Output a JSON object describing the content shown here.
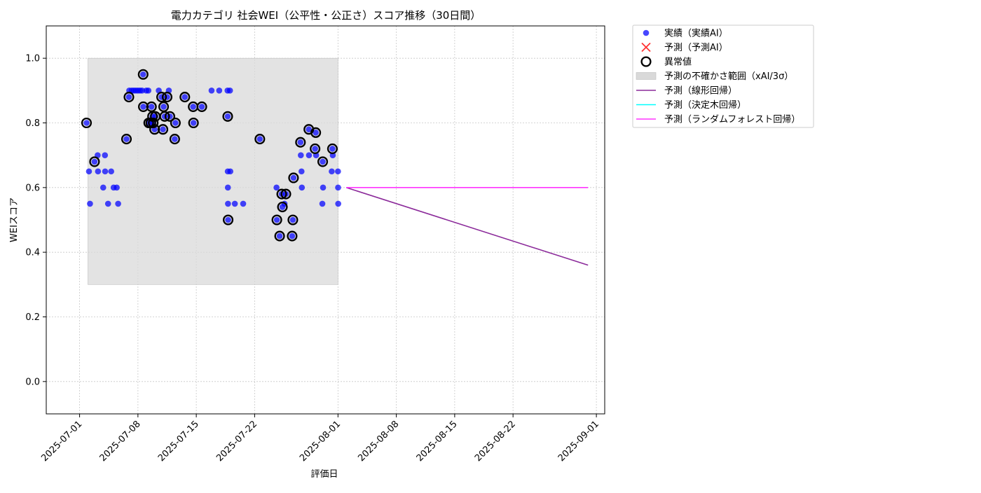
{
  "chart_data": {
    "type": "scatter",
    "title": "電力カテゴリ 社会WEI（公平性・公正さ）スコア推移（30日間）",
    "xlabel": "評価日",
    "ylabel": "WEIスコア",
    "xlim": [
      "2025-06-27",
      "2025-09-02"
    ],
    "ylim": [
      -0.1,
      1.1
    ],
    "x_ticks": [
      "2025-07-01",
      "2025-07-08",
      "2025-07-15",
      "2025-07-22",
      "2025-08-01",
      "2025-08-08",
      "2025-08-15",
      "2025-08-22",
      "2025-09-01"
    ],
    "y_ticks": [
      "0.0",
      "0.2",
      "0.4",
      "0.6",
      "0.8",
      "1.0"
    ],
    "grid": true,
    "legend_position": "outside top-right",
    "legend": [
      {
        "label": "実績（実績AI）",
        "kind": "dot",
        "color": "#0000ff"
      },
      {
        "label": "予測（予測AI）",
        "kind": "cross",
        "color": "#ff3333"
      },
      {
        "label": "異常値",
        "kind": "ring",
        "color": "#000000"
      },
      {
        "label": "予測の不確かさ範囲（xAI/3σ）",
        "kind": "band",
        "color": "#d9d9d9"
      },
      {
        "label": "予測（線形回帰）",
        "kind": "line",
        "color": "#8b2a9a"
      },
      {
        "label": "予測（決定木回帰）",
        "kind": "line",
        "color": "#00ffff"
      },
      {
        "label": "予測（ランダムフォレスト回帰）",
        "kind": "line",
        "color": "#ff33ff"
      }
    ],
    "band": {
      "x_start": "2025-07-02",
      "x_end": "2025-08-01",
      "y_low": 0.3,
      "y_high": 1.0
    },
    "actual": [
      [
        "2025-07-01 20:00",
        0.8
      ],
      [
        "2025-07-02 03:00",
        0.65
      ],
      [
        "2025-07-02 06:00",
        0.55
      ],
      [
        "2025-07-02 19:00",
        0.68
      ],
      [
        "2025-07-03 04:00",
        0.7
      ],
      [
        "2025-07-03 05:00",
        0.65
      ],
      [
        "2025-07-03 20:00",
        0.6
      ],
      [
        "2025-07-04 01:00",
        0.7
      ],
      [
        "2025-07-04 01:30",
        0.65
      ],
      [
        "2025-07-04 10:00",
        0.55
      ],
      [
        "2025-07-04 19:00",
        0.65
      ],
      [
        "2025-07-05 02:00",
        0.6
      ],
      [
        "2025-07-05 11:00",
        0.6
      ],
      [
        "2025-07-05 15:00",
        0.55
      ],
      [
        "2025-07-06 15:00",
        0.75
      ],
      [
        "2025-07-06 22:00",
        0.88
      ],
      [
        "2025-07-06 23:00",
        0.9
      ],
      [
        "2025-07-07 06:00",
        0.9
      ],
      [
        "2025-07-07 12:00",
        0.9
      ],
      [
        "2025-07-07 18:00",
        0.9
      ],
      [
        "2025-07-08 00:00",
        0.9
      ],
      [
        "2025-07-08 06:00",
        0.9
      ],
      [
        "2025-07-08 12:00",
        0.9
      ],
      [
        "2025-07-08 15:00",
        0.95
      ],
      [
        "2025-07-08 15:30",
        0.85
      ],
      [
        "2025-07-09 00:00",
        0.9
      ],
      [
        "2025-07-09 06:00",
        0.9
      ],
      [
        "2025-07-09 07:00",
        0.8
      ],
      [
        "2025-07-09 13:00",
        0.8
      ],
      [
        "2025-07-09 15:00",
        0.85
      ],
      [
        "2025-07-09 18:00",
        0.82
      ],
      [
        "2025-07-09 20:00",
        0.8
      ],
      [
        "2025-07-10 00:00",
        0.78
      ],
      [
        "2025-07-10 02:00",
        0.82
      ],
      [
        "2025-07-10 12:00",
        0.9
      ],
      [
        "2025-07-10 20:00",
        0.88
      ],
      [
        "2025-07-11 00:00",
        0.78
      ],
      [
        "2025-07-11 02:00",
        0.85
      ],
      [
        "2025-07-11 05:00",
        0.82
      ],
      [
        "2025-07-11 12:00",
        0.88
      ],
      [
        "2025-07-11 17:00",
        0.9
      ],
      [
        "2025-07-11 20:00",
        0.82
      ],
      [
        "2025-07-12 10:00",
        0.75
      ],
      [
        "2025-07-12 12:00",
        0.8
      ],
      [
        "2025-07-13 15:00",
        0.88
      ],
      [
        "2025-07-14 15:00",
        0.85
      ],
      [
        "2025-07-14 16:00",
        0.8
      ],
      [
        "2025-07-15 16:00",
        0.85
      ],
      [
        "2025-07-16 20:00",
        0.9
      ],
      [
        "2025-07-17 18:00",
        0.9
      ],
      [
        "2025-07-18 18:00",
        0.9
      ],
      [
        "2025-07-18 18:30",
        0.82
      ],
      [
        "2025-07-18 18:40",
        0.65
      ],
      [
        "2025-07-18 19:00",
        0.6
      ],
      [
        "2025-07-18 19:20",
        0.55
      ],
      [
        "2025-07-18 19:40",
        0.5
      ],
      [
        "2025-07-19 01:00",
        0.9
      ],
      [
        "2025-07-19 02:00",
        0.65
      ],
      [
        "2025-07-19 15:00",
        0.55
      ],
      [
        "2025-07-20 15:00",
        0.55
      ],
      [
        "2025-07-22 15:00",
        0.75
      ],
      [
        "2025-07-24 15:00",
        0.6
      ],
      [
        "2025-07-24 16:00",
        0.5
      ],
      [
        "2025-07-25 00:00",
        0.45
      ],
      [
        "2025-07-25 06:00",
        0.58
      ],
      [
        "2025-07-25 08:00",
        0.54
      ],
      [
        "2025-07-25 14:00",
        0.55
      ],
      [
        "2025-07-25 18:00",
        0.58
      ],
      [
        "2025-07-26 12:00",
        0.45
      ],
      [
        "2025-07-26 14:00",
        0.5
      ],
      [
        "2025-07-26 16:00",
        0.63
      ],
      [
        "2025-07-27 12:00",
        0.74
      ],
      [
        "2025-07-27 13:00",
        0.7
      ],
      [
        "2025-07-27 15:00",
        0.65
      ],
      [
        "2025-07-27 16:00",
        0.6
      ],
      [
        "2025-07-28 12:00",
        0.78
      ],
      [
        "2025-07-28 12:30",
        0.7
      ],
      [
        "2025-07-29 06:00",
        0.72
      ],
      [
        "2025-07-29 08:00",
        0.77
      ],
      [
        "2025-07-29 09:00",
        0.7
      ],
      [
        "2025-07-30 03:00",
        0.55
      ],
      [
        "2025-07-30 04:00",
        0.68
      ],
      [
        "2025-07-30 05:00",
        0.6
      ],
      [
        "2025-07-31 06:00",
        0.65
      ],
      [
        "2025-07-31 08:00",
        0.72
      ],
      [
        "2025-07-31 09:00",
        0.7
      ],
      [
        "2025-08-01 00:00",
        0.65
      ],
      [
        "2025-08-01 00:20",
        0.6
      ],
      [
        "2025-08-01 00:40",
        0.55
      ]
    ],
    "anomalies": [
      [
        "2025-07-01 20:00",
        0.8
      ],
      [
        "2025-07-02 19:00",
        0.68
      ],
      [
        "2025-07-06 15:00",
        0.75
      ],
      [
        "2025-07-06 22:00",
        0.88
      ],
      [
        "2025-07-08 15:00",
        0.95
      ],
      [
        "2025-07-08 15:30",
        0.85
      ],
      [
        "2025-07-09 07:00",
        0.8
      ],
      [
        "2025-07-09 13:00",
        0.8
      ],
      [
        "2025-07-09 15:00",
        0.85
      ],
      [
        "2025-07-09 18:00",
        0.82
      ],
      [
        "2025-07-09 20:00",
        0.8
      ],
      [
        "2025-07-10 00:00",
        0.78
      ],
      [
        "2025-07-10 02:00",
        0.82
      ],
      [
        "2025-07-10 20:00",
        0.88
      ],
      [
        "2025-07-11 00:00",
        0.78
      ],
      [
        "2025-07-11 02:00",
        0.85
      ],
      [
        "2025-07-11 05:00",
        0.82
      ],
      [
        "2025-07-11 12:00",
        0.88
      ],
      [
        "2025-07-11 20:00",
        0.82
      ],
      [
        "2025-07-12 10:00",
        0.75
      ],
      [
        "2025-07-12 12:00",
        0.8
      ],
      [
        "2025-07-13 15:00",
        0.88
      ],
      [
        "2025-07-14 15:00",
        0.85
      ],
      [
        "2025-07-14 16:00",
        0.8
      ],
      [
        "2025-07-15 16:00",
        0.85
      ],
      [
        "2025-07-18 18:30",
        0.82
      ],
      [
        "2025-07-18 19:40",
        0.5
      ],
      [
        "2025-07-22 15:00",
        0.75
      ],
      [
        "2025-07-24 16:00",
        0.5
      ],
      [
        "2025-07-25 00:00",
        0.45
      ],
      [
        "2025-07-25 06:00",
        0.58
      ],
      [
        "2025-07-25 08:00",
        0.54
      ],
      [
        "2025-07-25 18:00",
        0.58
      ],
      [
        "2025-07-26 12:00",
        0.45
      ],
      [
        "2025-07-26 14:00",
        0.5
      ],
      [
        "2025-07-26 16:00",
        0.63
      ],
      [
        "2025-07-27 12:00",
        0.74
      ],
      [
        "2025-07-28 12:00",
        0.78
      ],
      [
        "2025-07-29 06:00",
        0.72
      ],
      [
        "2025-07-29 08:00",
        0.77
      ],
      [
        "2025-07-30 04:00",
        0.68
      ],
      [
        "2025-07-31 08:00",
        0.72
      ]
    ],
    "series": [
      {
        "name": "予測（線形回帰）",
        "x": [
          "2025-08-02",
          "2025-08-31"
        ],
        "values": [
          0.6,
          0.36
        ],
        "color": "#8b2a9a"
      },
      {
        "name": "予測（ランダムフォレスト回帰）",
        "x": [
          "2025-08-02",
          "2025-08-31"
        ],
        "values": [
          0.6,
          0.6
        ],
        "color": "#ff33ff"
      }
    ]
  }
}
